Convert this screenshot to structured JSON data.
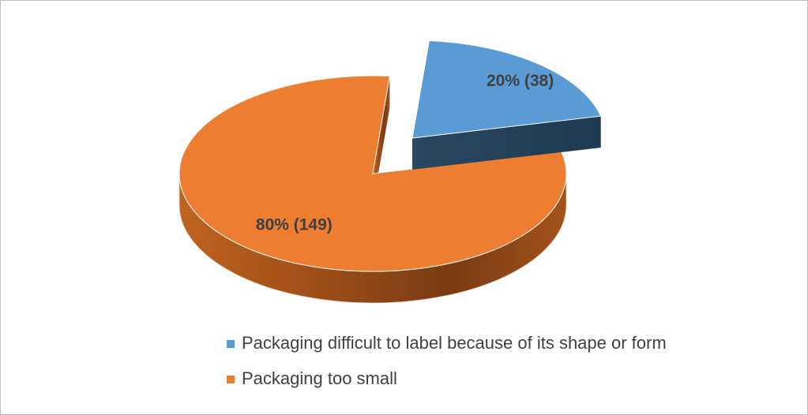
{
  "chart_data": {
    "type": "pie",
    "categories": [
      "Packaging difficult to label because of its shape or form",
      "Packaging too small"
    ],
    "values": [
      20,
      80
    ],
    "value_labels": [
      "20%  (38)",
      "80%  (149)"
    ],
    "colors": [
      "#5b9bd5",
      "#ed7d31"
    ],
    "legend": "bottom"
  }
}
